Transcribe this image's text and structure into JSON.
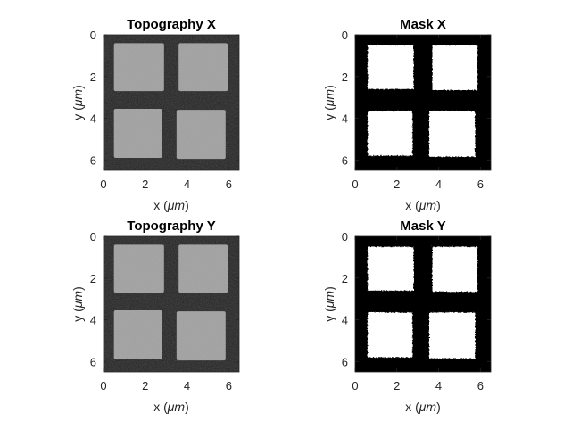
{
  "figure": {
    "background": "#ffffff",
    "layout": {
      "rows": 2,
      "cols": 2
    }
  },
  "chart_data": [
    {
      "type": "heatmap",
      "title": "Topography X",
      "xlabel_prefix": "x (",
      "xlabel_unit": "μm",
      "xlabel_suffix": ")",
      "ylabel_prefix": "y (",
      "ylabel_unit": "μm",
      "ylabel_suffix": ")",
      "xlim": [
        0,
        6.5
      ],
      "ylim": [
        0,
        6.5
      ],
      "y_direction": "down",
      "xticks": [
        0,
        2,
        4,
        6
      ],
      "yticks": [
        0,
        2,
        4,
        6
      ],
      "colormap": "gray",
      "background_color": "#1f1f1f",
      "feature_color": "#9e9e9e",
      "features": [
        {
          "x0": 0.5,
          "x1": 2.9,
          "y0": 0.4,
          "y1": 2.7
        },
        {
          "x0": 3.6,
          "x1": 5.95,
          "y0": 0.4,
          "y1": 2.7
        },
        {
          "x0": 0.5,
          "x1": 2.8,
          "y0": 3.55,
          "y1": 5.9
        },
        {
          "x0": 3.5,
          "x1": 5.85,
          "y0": 3.6,
          "y1": 5.95
        }
      ]
    },
    {
      "type": "heatmap",
      "title": "Mask X",
      "xlabel_prefix": "x (",
      "xlabel_unit": "μm",
      "xlabel_suffix": ")",
      "ylabel_prefix": "y (",
      "ylabel_unit": "μm",
      "ylabel_suffix": ")",
      "xlim": [
        0,
        6.5
      ],
      "ylim": [
        0,
        6.5
      ],
      "y_direction": "down",
      "xticks": [
        0,
        2,
        4,
        6
      ],
      "yticks": [
        0,
        2,
        4,
        6
      ],
      "colormap": "binary",
      "background_color": "#000000",
      "feature_color": "#ffffff",
      "features": [
        {
          "x0": 0.6,
          "x1": 2.8,
          "y0": 0.5,
          "y1": 2.6
        },
        {
          "x0": 3.7,
          "x1": 5.85,
          "y0": 0.5,
          "y1": 2.65
        },
        {
          "x0": 0.6,
          "x1": 2.75,
          "y0": 3.65,
          "y1": 5.8
        },
        {
          "x0": 3.55,
          "x1": 5.75,
          "y0": 3.65,
          "y1": 5.85
        }
      ]
    },
    {
      "type": "heatmap",
      "title": "Topography Y",
      "xlabel_prefix": "x (",
      "xlabel_unit": "μm",
      "xlabel_suffix": ")",
      "ylabel_prefix": "y (",
      "ylabel_unit": "μm",
      "ylabel_suffix": ")",
      "xlim": [
        0,
        6.5
      ],
      "ylim": [
        0,
        6.5
      ],
      "y_direction": "down",
      "xticks": [
        0,
        2,
        4,
        6
      ],
      "yticks": [
        0,
        2,
        4,
        6
      ],
      "colormap": "gray",
      "background_color": "#1f1f1f",
      "feature_color": "#9e9e9e",
      "features": [
        {
          "x0": 0.5,
          "x1": 2.9,
          "y0": 0.4,
          "y1": 2.7
        },
        {
          "x0": 3.6,
          "x1": 5.95,
          "y0": 0.4,
          "y1": 2.7
        },
        {
          "x0": 0.5,
          "x1": 2.8,
          "y0": 3.55,
          "y1": 5.9
        },
        {
          "x0": 3.5,
          "x1": 5.85,
          "y0": 3.6,
          "y1": 5.95
        }
      ]
    },
    {
      "type": "heatmap",
      "title": "Mask Y",
      "xlabel_prefix": "x (",
      "xlabel_unit": "μm",
      "xlabel_suffix": ")",
      "ylabel_prefix": "y (",
      "ylabel_unit": "μm",
      "ylabel_suffix": ")",
      "xlim": [
        0,
        6.5
      ],
      "ylim": [
        0,
        6.5
      ],
      "y_direction": "down",
      "xticks": [
        0,
        2,
        4,
        6
      ],
      "yticks": [
        0,
        2,
        4,
        6
      ],
      "colormap": "binary",
      "background_color": "#000000",
      "feature_color": "#ffffff",
      "features": [
        {
          "x0": 0.6,
          "x1": 2.8,
          "y0": 0.5,
          "y1": 2.6
        },
        {
          "x0": 3.7,
          "x1": 5.85,
          "y0": 0.5,
          "y1": 2.65
        },
        {
          "x0": 0.6,
          "x1": 2.75,
          "y0": 3.65,
          "y1": 5.8
        },
        {
          "x0": 3.55,
          "x1": 5.75,
          "y0": 3.65,
          "y1": 5.85
        }
      ]
    }
  ]
}
